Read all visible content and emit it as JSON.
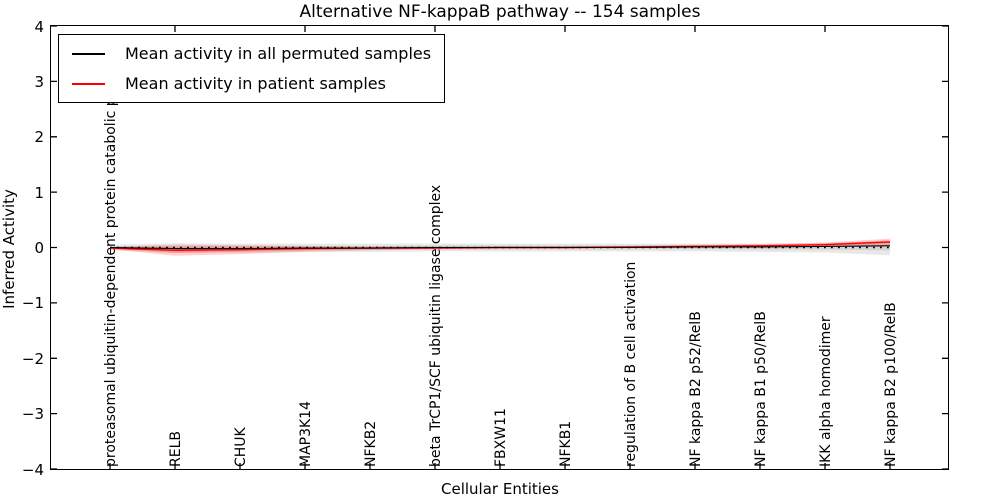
{
  "chart_data": {
    "type": "line",
    "title": "Alternative NF-kappaB pathway -- 154 samples",
    "xlabel": "Cellular Entities",
    "ylabel": "Inferred Activity",
    "ylim": [
      -4,
      4
    ],
    "yticks": [
      4,
      3,
      2,
      1,
      0,
      -1,
      -2,
      -3,
      -4
    ],
    "ytick_labels": [
      "4",
      "3",
      "2",
      "1",
      "0",
      "−1",
      "−2",
      "−3",
      "−4"
    ],
    "grid": false,
    "legend_position": "upper left",
    "categories": [
      "proteasomal ubiquitin-dependent protein catabolic process",
      "RELB",
      "CHUK",
      "MAP3K14",
      "NFKB2",
      "beta TrCP1/SCF ubiquitin ligase complex",
      "FBXW11",
      "NFKB1",
      "regulation of B cell activation",
      "NF kappa B2 p52/RelB",
      "NF kappa B1 p50/RelB",
      "IKK alpha homodimer",
      "NF kappa B2 p100/RelB"
    ],
    "series": [
      {
        "name": "Mean activity in all permuted samples",
        "color": "#000000",
        "values": [
          0.0,
          -0.02,
          -0.02,
          -0.01,
          -0.01,
          0.0,
          0.0,
          0.0,
          0.0,
          0.01,
          0.01,
          0.02,
          0.03
        ],
        "band_upper": [
          0.05,
          0.08,
          0.07,
          0.07,
          0.07,
          0.07,
          0.07,
          0.07,
          0.07,
          0.07,
          0.07,
          0.08,
          0.11
        ],
        "band_lower": [
          -0.05,
          -0.1,
          -0.09,
          -0.08,
          -0.08,
          -0.07,
          -0.07,
          -0.07,
          -0.07,
          -0.07,
          -0.08,
          -0.09,
          -0.14
        ],
        "band_color": "#808080"
      },
      {
        "name": "Mean activity in patient samples",
        "color": "#ff0000",
        "values": [
          -0.01,
          -0.05,
          -0.04,
          -0.02,
          -0.01,
          -0.01,
          0.0,
          0.0,
          0.01,
          0.02,
          0.03,
          0.05,
          0.1
        ],
        "band_upper": [
          0.01,
          0.05,
          0.04,
          0.03,
          0.02,
          0.02,
          0.02,
          0.02,
          0.03,
          0.05,
          0.06,
          0.09,
          0.16
        ],
        "band_lower": [
          -0.03,
          -0.15,
          -0.12,
          -0.08,
          -0.05,
          -0.03,
          -0.02,
          -0.02,
          -0.01,
          0.0,
          0.01,
          0.02,
          0.04
        ],
        "band_color": "#ff0000"
      }
    ],
    "zero_line": {
      "y": 0,
      "style": "dotted",
      "color": "#000000"
    }
  }
}
